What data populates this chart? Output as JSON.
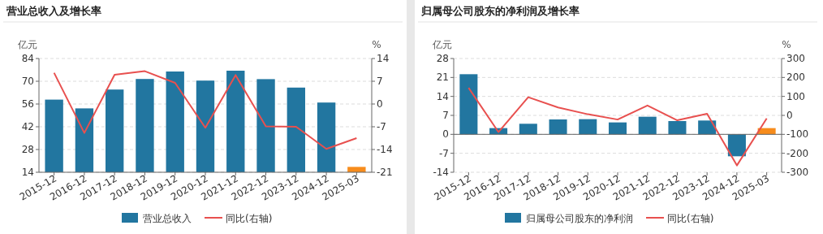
{
  "chart_data": [
    {
      "type": "bar",
      "title": "营业总收入及增长率",
      "ylabel": "亿元",
      "y2label": "%",
      "categories": [
        "2015-12",
        "2016-12",
        "2017-12",
        "2018-12",
        "2019-12",
        "2020-12",
        "2021-12",
        "2022-12",
        "2023-12",
        "2024-12",
        "2025-03"
      ],
      "series": [
        {
          "name": "营业总收入",
          "color": "#2276a0",
          "colors": [
            "#2276a0",
            "#2276a0",
            "#2276a0",
            "#2276a0",
            "#2276a0",
            "#2276a0",
            "#2276a0",
            "#2276a0",
            "#2276a0",
            "#2276a0",
            "#f78c1c"
          ],
          "values": [
            58.7,
            53.3,
            64.9,
            71.4,
            76.0,
            70.4,
            76.5,
            71.3,
            66.1,
            56.9,
            17.3
          ]
        },
        {
          "name": "同比(右轴)",
          "type": "line",
          "axis": "y2",
          "color": "#e8504f",
          "values": [
            9.6,
            -8.9,
            9.0,
            10.1,
            6.5,
            -7.3,
            8.9,
            -6.9,
            -7.0,
            -13.8,
            -10.5
          ]
        }
      ],
      "ylim": [
        14,
        84
      ],
      "yticks": [
        14,
        28,
        42,
        56,
        70,
        84
      ],
      "y2lim": [
        -21,
        14
      ],
      "y2ticks": [
        -21,
        -14,
        -7,
        0,
        7,
        14
      ],
      "grid": "y",
      "legend": "bottom"
    },
    {
      "type": "bar",
      "title": "归属母公司股东的净利润及增长率",
      "ylabel": "亿元",
      "y2label": "%",
      "categories": [
        "2015-12",
        "2016-12",
        "2017-12",
        "2018-12",
        "2019-12",
        "2020-12",
        "2021-12",
        "2022-12",
        "2023-12",
        "2024-12",
        "2025-03"
      ],
      "series": [
        {
          "name": "归属母公司股东的净利润",
          "color": "#2276a0",
          "colors": [
            "#2276a0",
            "#2276a0",
            "#2276a0",
            "#2276a0",
            "#2276a0",
            "#2276a0",
            "#2276a0",
            "#2276a0",
            "#2276a0",
            "#2276a0",
            "#f78c1c"
          ],
          "values": [
            22.2,
            2.3,
            3.9,
            5.5,
            5.6,
            4.4,
            6.5,
            4.9,
            5.1,
            -8.1,
            2.3
          ]
        },
        {
          "name": "同比(右轴)",
          "type": "line",
          "axis": "y2",
          "color": "#e8504f",
          "values": [
            145,
            -88,
            96,
            42,
            6,
            -22,
            52,
            -26,
            9,
            -264,
            -16
          ]
        }
      ],
      "ylim": [
        -14,
        28
      ],
      "yticks": [
        -14,
        -7,
        0,
        7,
        14,
        21,
        28
      ],
      "y2lim": [
        -300,
        300
      ],
      "y2ticks": [
        -300,
        -200,
        -100,
        0,
        100,
        200,
        300
      ],
      "grid": "y",
      "legend": "bottom"
    }
  ]
}
